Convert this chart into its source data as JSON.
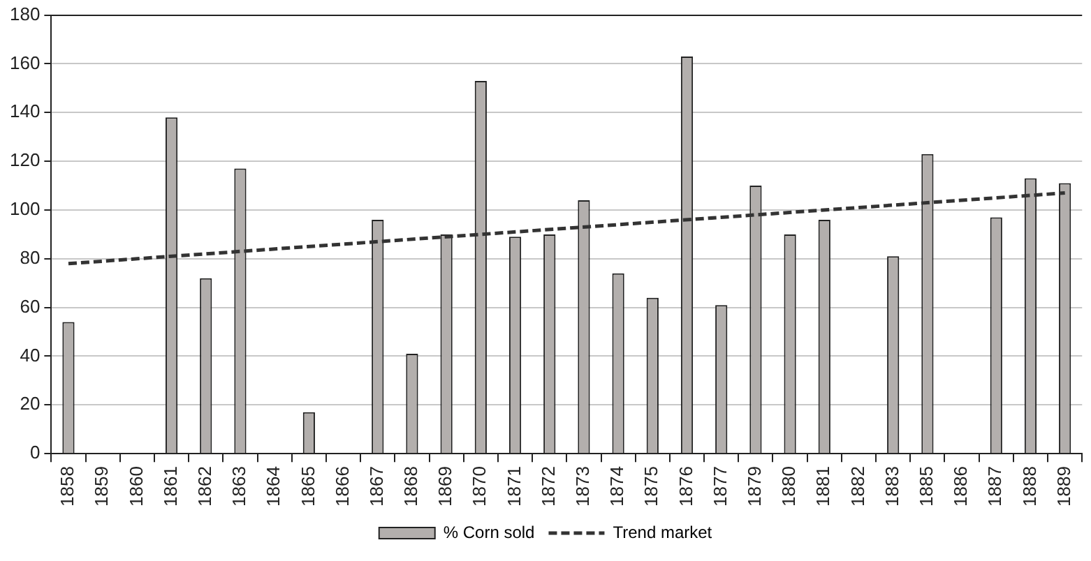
{
  "chart_data": {
    "type": "bar",
    "categories": [
      "1858",
      "1859",
      "1860",
      "1861",
      "1862",
      "1863",
      "1864",
      "1865",
      "1866",
      "1867",
      "1868",
      "1869",
      "1870",
      "1871",
      "1872",
      "1873",
      "1874",
      "1875",
      "1876",
      "1877",
      "1879",
      "1880",
      "1881",
      "1882",
      "1883",
      "1885",
      "1886",
      "1887",
      "1888",
      "1889"
    ],
    "series": [
      {
        "name": "% Corn sold",
        "color": "#b3afad",
        "values": [
          54,
          0,
          0,
          138,
          72,
          117,
          0,
          17,
          0,
          96,
          41,
          90,
          153,
          89,
          90,
          104,
          74,
          64,
          163,
          61,
          110,
          90,
          96,
          0,
          81,
          123,
          0,
          97,
          113,
          111
        ]
      },
      {
        "name": "Trend market",
        "type": "line",
        "color": "#333333",
        "line_style": "dashed",
        "marker": "none",
        "values": [
          78,
          null,
          null,
          null,
          null,
          null,
          null,
          null,
          null,
          null,
          null,
          null,
          null,
          null,
          null,
          null,
          null,
          null,
          null,
          null,
          null,
          null,
          null,
          null,
          null,
          null,
          null,
          null,
          null,
          107
        ]
      }
    ],
    "ylim": [
      0,
      180
    ],
    "yticks": [
      0,
      20,
      40,
      60,
      80,
      100,
      120,
      140,
      160,
      180
    ],
    "grid": "y",
    "legend": "bottom"
  }
}
